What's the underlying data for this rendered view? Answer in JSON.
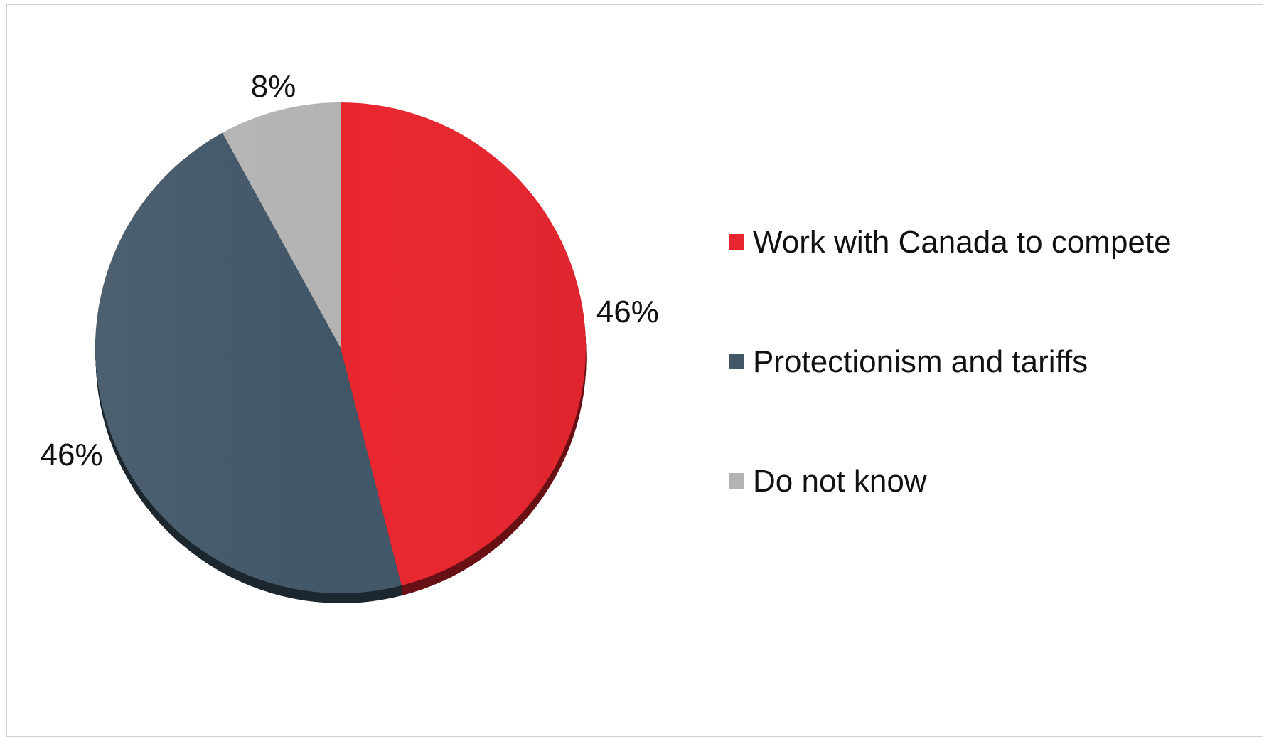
{
  "chart_data": {
    "type": "pie",
    "title": "",
    "categories": [
      "Work with Canada to compete",
      "Protectionism and tariffs",
      "Do not know"
    ],
    "values": [
      46,
      46,
      8
    ],
    "value_labels": [
      "46%",
      "46%",
      "8%"
    ],
    "colors": [
      "#e8262f",
      "#415667",
      "#b3b3b3"
    ],
    "start_angle_deg": 0,
    "direction": "clockwise",
    "legend_position": "right"
  }
}
